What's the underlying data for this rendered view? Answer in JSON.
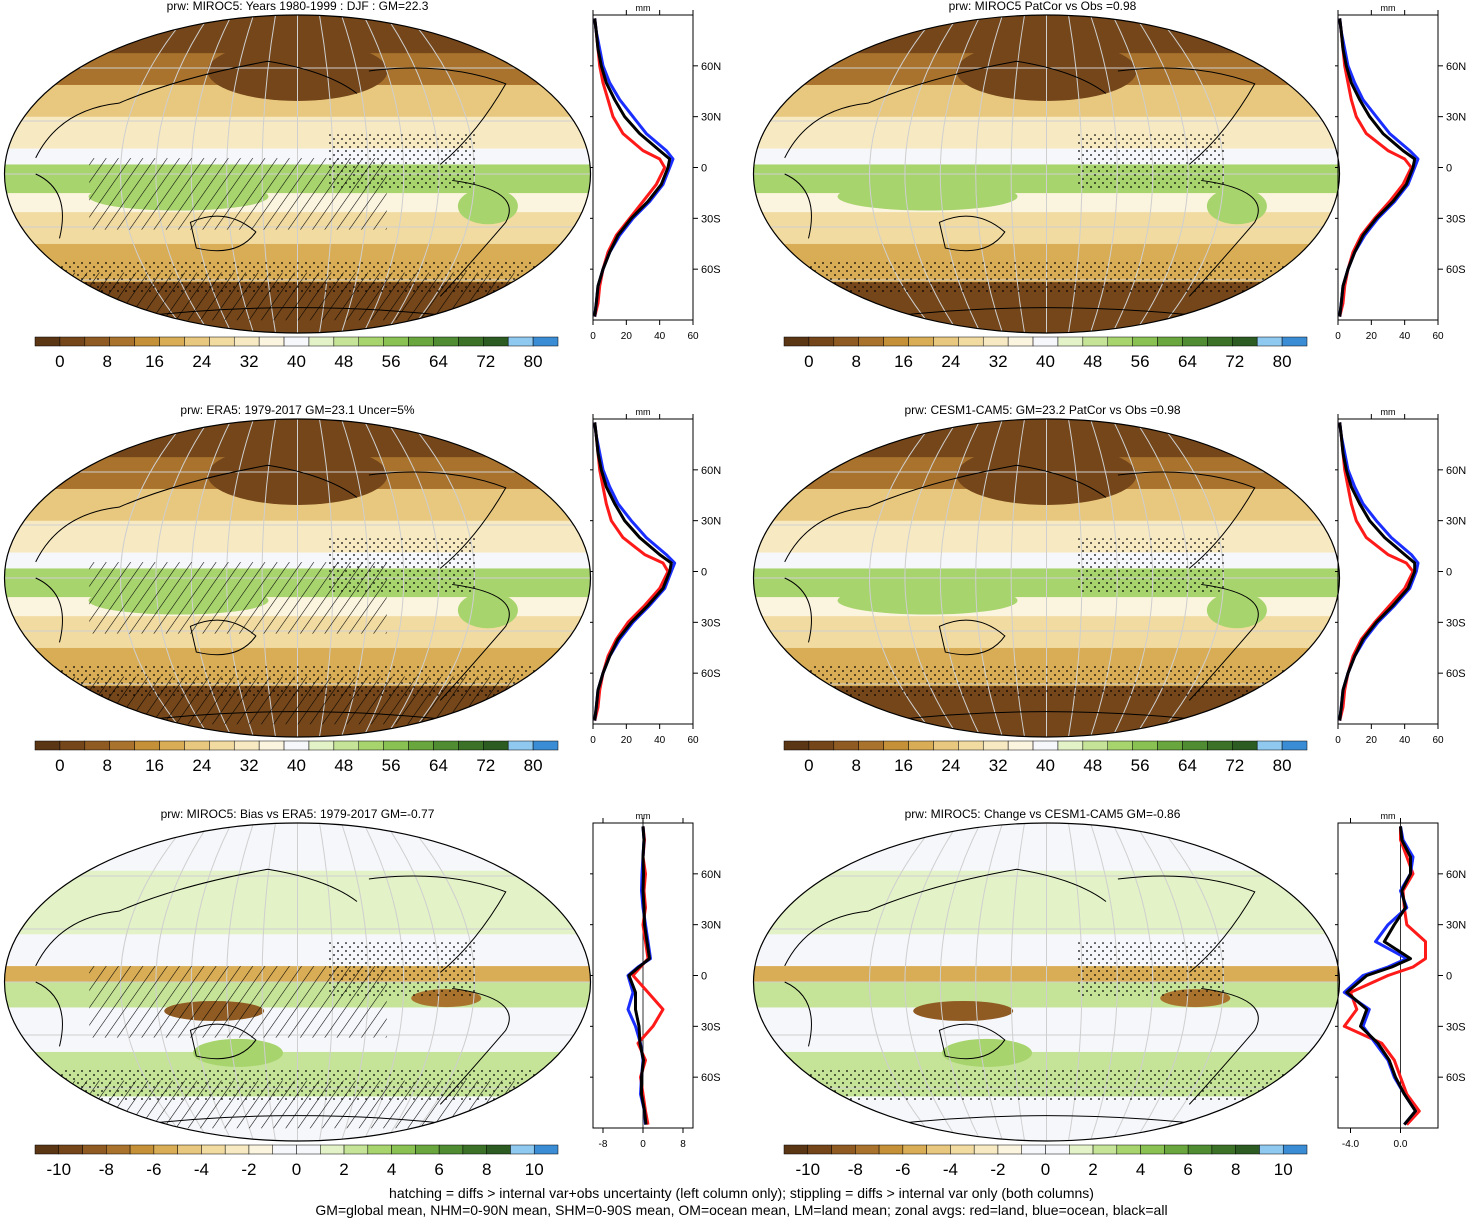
{
  "palette_abs": [
    "#5a3615",
    "#74461a",
    "#8f5b22",
    "#a9732e",
    "#c49139",
    "#d9ad55",
    "#e8c77e",
    "#f1dba1",
    "#f7eac3",
    "#fbf4de",
    "#f6f7fb",
    "#e3f2c7",
    "#c5e497",
    "#a7d46d",
    "#89c152",
    "#6aa63e",
    "#4f8c32",
    "#3b7228",
    "#2c5c21",
    "#8fc9ef",
    "#3a8dd5"
  ],
  "palette_diff": [
    "#5a3615",
    "#74461a",
    "#8f5b22",
    "#a9732e",
    "#c49139",
    "#d9ad55",
    "#e8c77e",
    "#f1dba1",
    "#f7eac3",
    "#fbf4de",
    "#f6f7fb",
    "#f6f7fb",
    "#e3f2c7",
    "#c5e497",
    "#a7d46d",
    "#89c152",
    "#6aa63e",
    "#4f8c32",
    "#3b7228",
    "#2c5c21",
    "#8fc9ef",
    "#3a8dd5"
  ],
  "zonal_colors": {
    "land": "#ff1a1a",
    "ocean": "#1a2eff",
    "all": "#000000"
  },
  "zonal_unit": "mm",
  "lat_labels": [
    "60N",
    "30N",
    "0",
    "30S",
    "60S"
  ],
  "colorbar_labels_abs": [
    "0",
    "8",
    "16",
    "24",
    "32",
    "40",
    "48",
    "56",
    "64",
    "72",
    "80"
  ],
  "colorbar_labels_diff": [
    "-10",
    "-8",
    "-6",
    "-4",
    "-2",
    "0",
    "2",
    "4",
    "6",
    "8",
    "10"
  ],
  "panels": [
    {
      "title": "prw: MIROC5: Years 1980-1999 : DJF : GM=22.3",
      "kind": "abs",
      "hatch": true,
      "zonal_ticks": [
        "0",
        "20",
        "40",
        "60"
      ]
    },
    {
      "title": "prw: MIROC5 PatCor vs Obs =0.98",
      "kind": "abs",
      "hatch": false,
      "zonal_ticks": [
        "0",
        "20",
        "40",
        "60"
      ]
    },
    {
      "title": "prw: ERA5: 1979-2017 GM=23.1 Uncer=5%",
      "kind": "abs",
      "hatch": true,
      "zonal_ticks": [
        "0",
        "20",
        "40",
        "60"
      ]
    },
    {
      "title": "prw: CESM1-CAM5: GM=23.2 PatCor vs Obs =0.98",
      "kind": "abs",
      "hatch": false,
      "zonal_ticks": [
        "0",
        "20",
        "40",
        "60"
      ]
    },
    {
      "title": "prw: MIROC5: Bias vs ERA5: 1979-2017 GM=-0.77",
      "kind": "diff",
      "hatch": true,
      "zonal_ticks": [
        "-8",
        "0",
        "8"
      ]
    },
    {
      "title": "prw: MIROC5: Change vs CESM1-CAM5 GM=-0.86",
      "kind": "diff",
      "hatch": false,
      "zonal_ticks": [
        "-4.0",
        "0.0"
      ]
    }
  ],
  "chart_data": {
    "type": "line",
    "description_series": [
      "land",
      "ocean",
      "all"
    ],
    "y_axis": "latitude",
    "ylim": [
      -90,
      90
    ],
    "panels": [
      {
        "xlim": [
          0,
          60
        ],
        "lat": [
          -88,
          -80,
          -70,
          -60,
          -50,
          -40,
          -30,
          -20,
          -10,
          0,
          5,
          10,
          20,
          30,
          40,
          50,
          60,
          70,
          80,
          88
        ],
        "land": [
          1,
          3,
          4,
          6,
          9,
          14,
          22,
          30,
          38,
          43,
          40,
          30,
          18,
          12,
          9,
          6,
          4,
          3,
          2,
          1
        ],
        "ocean": [
          1,
          2,
          3,
          6,
          10,
          16,
          24,
          34,
          42,
          46,
          48,
          44,
          32,
          24,
          16,
          10,
          6,
          4,
          2,
          1
        ],
        "all": [
          1,
          2,
          3,
          6,
          10,
          15,
          23,
          33,
          41,
          45,
          46,
          40,
          28,
          19,
          13,
          8,
          5,
          3,
          2,
          1
        ]
      },
      {
        "xlim": [
          0,
          60
        ],
        "lat": [
          -88,
          -80,
          -70,
          -60,
          -50,
          -40,
          -30,
          -20,
          -10,
          0,
          5,
          10,
          20,
          30,
          40,
          50,
          60,
          70,
          80,
          88
        ],
        "land": [
          1,
          3,
          4,
          6,
          9,
          14,
          22,
          31,
          39,
          44,
          40,
          30,
          17,
          11,
          8,
          6,
          4,
          3,
          2,
          1
        ],
        "ocean": [
          1,
          2,
          3,
          6,
          10,
          16,
          24,
          34,
          42,
          46,
          48,
          43,
          31,
          23,
          15,
          10,
          6,
          4,
          2,
          1
        ],
        "all": [
          1,
          2,
          3,
          6,
          10,
          15,
          23,
          33,
          41,
          45,
          46,
          39,
          27,
          19,
          13,
          8,
          5,
          3,
          2,
          1
        ]
      },
      {
        "xlim": [
          0,
          60
        ],
        "lat": [
          -88,
          -80,
          -70,
          -60,
          -50,
          -40,
          -30,
          -20,
          -10,
          0,
          5,
          10,
          20,
          30,
          40,
          50,
          60,
          70,
          80,
          88
        ],
        "land": [
          1,
          3,
          4,
          6,
          9,
          14,
          21,
          31,
          40,
          45,
          42,
          31,
          18,
          11,
          8,
          6,
          4,
          3,
          2,
          1
        ],
        "ocean": [
          1,
          2,
          3,
          6,
          10,
          16,
          24,
          34,
          43,
          47,
          49,
          44,
          32,
          23,
          15,
          10,
          6,
          4,
          2,
          1
        ],
        "all": [
          1,
          2,
          3,
          6,
          10,
          15,
          23,
          33,
          42,
          46,
          47,
          40,
          28,
          19,
          13,
          8,
          5,
          3,
          2,
          1
        ]
      },
      {
        "xlim": [
          0,
          60
        ],
        "lat": [
          -88,
          -80,
          -70,
          -60,
          -50,
          -40,
          -30,
          -20,
          -10,
          0,
          5,
          10,
          20,
          30,
          40,
          50,
          60,
          70,
          80,
          88
        ],
        "land": [
          1,
          3,
          4,
          6,
          9,
          14,
          22,
          31,
          40,
          45,
          41,
          30,
          17,
          11,
          8,
          6,
          4,
          3,
          2,
          1
        ],
        "ocean": [
          1,
          2,
          3,
          6,
          10,
          16,
          24,
          34,
          43,
          47,
          48,
          44,
          32,
          23,
          15,
          10,
          6,
          4,
          2,
          1
        ],
        "all": [
          1,
          2,
          3,
          6,
          10,
          15,
          23,
          33,
          42,
          46,
          46,
          40,
          28,
          19,
          13,
          8,
          5,
          3,
          2,
          1
        ]
      },
      {
        "xlim": [
          -10,
          10
        ],
        "lat": [
          -88,
          -80,
          -70,
          -60,
          -50,
          -40,
          -30,
          -20,
          -10,
          0,
          5,
          10,
          20,
          30,
          40,
          50,
          60,
          70,
          80,
          88
        ],
        "land": [
          1,
          0.5,
          0,
          -0.5,
          0.5,
          -1,
          2,
          4,
          1,
          -2,
          -0.5,
          1,
          0.5,
          0,
          0.5,
          0.2,
          0.5,
          0,
          0.3,
          0
        ],
        "ocean": [
          0.5,
          0.3,
          -0.5,
          -0.3,
          0,
          -0.5,
          -1.5,
          -3,
          -2,
          -3,
          -1,
          1.5,
          1,
          0.5,
          0,
          -0.3,
          -0.2,
          0,
          0.2,
          0
        ],
        "all": [
          0.6,
          0.3,
          -0.3,
          -0.3,
          0.1,
          -0.6,
          -0.8,
          -1.5,
          -1.5,
          -2.8,
          -0.8,
          1.3,
          0.8,
          0.3,
          0.2,
          0,
          0.1,
          0,
          0.2,
          0
        ]
      },
      {
        "xlim": [
          -5,
          3
        ],
        "lat": [
          -88,
          -80,
          -70,
          -60,
          -50,
          -40,
          -30,
          -20,
          -10,
          0,
          5,
          10,
          20,
          30,
          40,
          50,
          60,
          70,
          80,
          88
        ],
        "land": [
          0.5,
          1.5,
          0.5,
          0,
          -0.5,
          -1.5,
          -4.5,
          -3.5,
          -4,
          -1,
          1,
          2,
          2,
          0.5,
          0.3,
          0.2,
          1,
          0.5,
          0,
          0
        ],
        "ocean": [
          0.3,
          1.2,
          0.3,
          -0.5,
          -1,
          -2,
          -3,
          -2.5,
          -4.5,
          -3,
          -1,
          0.5,
          -2,
          -1,
          0.5,
          0,
          0.8,
          1,
          0.2,
          0
        ],
        "all": [
          0.3,
          1.2,
          0.3,
          -0.4,
          -0.9,
          -1.8,
          -3.2,
          -2.7,
          -4.3,
          -2.7,
          -0.7,
          0.8,
          -1.3,
          -0.5,
          0.4,
          0.1,
          0.8,
          0.8,
          0.1,
          0
        ]
      }
    ]
  },
  "footer": {
    "line1": "hatching = diffs > internal var+obs uncertainty (left column only); stippling = diffs > internal var only (both columns)",
    "line2": "GM=global mean, NHM=0-90N mean, SHM=0-90S mean, OM=ocean mean, LM=land mean; zonal avgs: red=land, blue=ocean, black=all"
  }
}
